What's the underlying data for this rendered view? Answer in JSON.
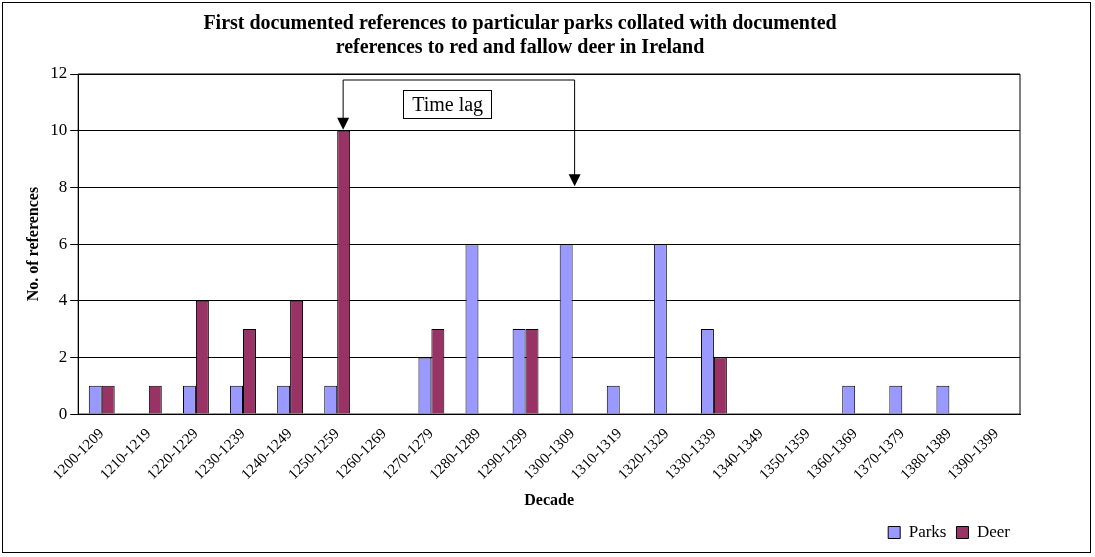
{
  "chart_data": {
    "type": "bar",
    "title": [
      "First documented references to particular parks collated with documented",
      "references to red and fallow deer in Ireland"
    ],
    "xlabel": "Decade",
    "ylabel": "No. of references",
    "categories": [
      "1200-1209",
      "1210-1219",
      "1220-1229",
      "1230-1239",
      "1240-1249",
      "1250-1259",
      "1260-1269",
      "1270-1279",
      "1280-1289",
      "1290-1299",
      "1300-1309",
      "1310-1319",
      "1320-1329",
      "1330-1339",
      "1340-1349",
      "1350-1359",
      "1360-1369",
      "1370-1379",
      "1380-1389",
      "1390-1399"
    ],
    "series": [
      {
        "name": "Parks",
        "color": "#9999ff",
        "values": [
          1,
          0,
          1,
          1,
          1,
          1,
          0,
          2,
          6,
          3,
          6,
          1,
          6,
          3,
          0,
          0,
          1,
          1,
          1,
          0
        ]
      },
      {
        "name": "Deer",
        "color": "#993366",
        "values": [
          1,
          1,
          4,
          3,
          4,
          10,
          0,
          3,
          0,
          3,
          0,
          0,
          0,
          2,
          0,
          0,
          0,
          0,
          0,
          0
        ]
      }
    ],
    "ylim": [
      0,
      12
    ],
    "yticks": [
      0,
      2,
      4,
      6,
      8,
      10,
      12
    ],
    "grid": "y",
    "legend": "bottom right",
    "annotations": [
      "Time lag"
    ]
  }
}
